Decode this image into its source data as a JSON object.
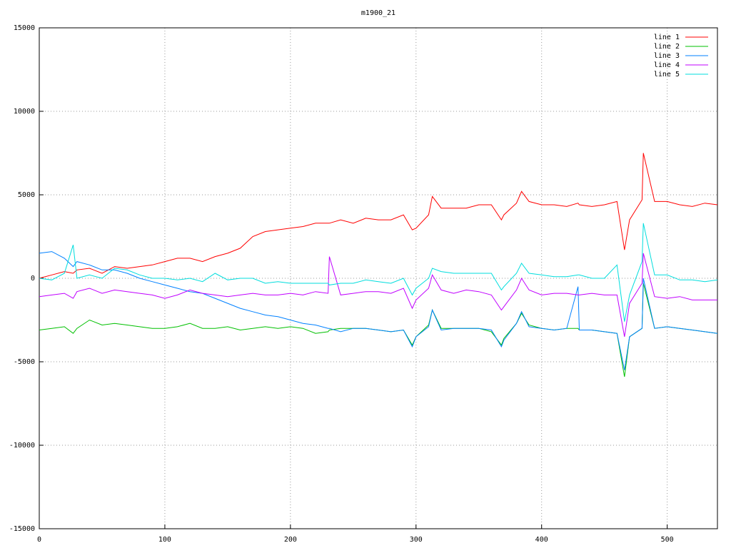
{
  "chart_data": {
    "type": "line",
    "title": "m1900_21",
    "x": [
      0,
      10,
      20,
      27,
      30,
      40,
      50,
      60,
      70,
      80,
      90,
      100,
      110,
      120,
      130,
      140,
      150,
      160,
      170,
      180,
      190,
      200,
      210,
      220,
      230,
      231,
      240,
      250,
      260,
      270,
      280,
      290,
      297,
      300,
      310,
      313,
      320,
      330,
      340,
      350,
      360,
      368,
      370,
      380,
      384,
      390,
      400,
      410,
      420,
      429,
      430,
      440,
      450,
      460,
      466,
      470,
      480,
      481,
      490,
      500,
      510,
      520,
      530,
      540
    ],
    "series": [
      {
        "name": "line 1",
        "color": "#ff0000",
        "values": [
          0,
          200,
          400,
          300,
          500,
          600,
          300,
          700,
          600,
          700,
          800,
          1000,
          1200,
          1200,
          1000,
          1300,
          1500,
          1800,
          2500,
          2800,
          2900,
          3000,
          3100,
          3300,
          3300,
          3300,
          3500,
          3300,
          3600,
          3500,
          3500,
          3800,
          2900,
          3000,
          3800,
          4900,
          4200,
          4200,
          4200,
          4400,
          4400,
          3500,
          3800,
          4500,
          5200,
          4600,
          4400,
          4400,
          4300,
          4500,
          4400,
          4300,
          4400,
          4600,
          1700,
          3500,
          4700,
          7500,
          4600,
          4600,
          4400,
          4300,
          4500,
          4400
        ]
      },
      {
        "name": "line 2",
        "color": "#00c000",
        "values": [
          -3100,
          -3000,
          -2900,
          -3300,
          -3000,
          -2500,
          -2800,
          -2700,
          -2800,
          -2900,
          -3000,
          -3000,
          -2900,
          -2700,
          -3000,
          -3000,
          -2900,
          -3100,
          -3000,
          -2900,
          -3000,
          -2900,
          -3000,
          -3300,
          -3200,
          -3100,
          -3000,
          -3000,
          -3000,
          -3100,
          -3200,
          -3100,
          -4000,
          -3500,
          -2800,
          -1900,
          -3000,
          -3000,
          -3000,
          -3000,
          -3200,
          -4000,
          -3600,
          -2700,
          -2100,
          -2800,
          -3000,
          -3100,
          -3000,
          -3000,
          -3100,
          -3100,
          -3200,
          -3300,
          -5900,
          -3500,
          -3000,
          -300,
          -3000,
          -2900,
          -3000,
          -3100,
          -3200,
          -3300
        ]
      },
      {
        "name": "line 3",
        "color": "#0080ff",
        "values": [
          1500,
          1600,
          1200,
          700,
          1000,
          800,
          500,
          500,
          300,
          0,
          -200,
          -400,
          -600,
          -800,
          -900,
          -1200,
          -1500,
          -1800,
          -2000,
          -2200,
          -2300,
          -2500,
          -2700,
          -2800,
          -3000,
          -3000,
          -3200,
          -3000,
          -3000,
          -3100,
          -3200,
          -3100,
          -4100,
          -3500,
          -2900,
          -1900,
          -3100,
          -3000,
          -3000,
          -3000,
          -3100,
          -4100,
          -3700,
          -2700,
          -2000,
          -2900,
          -3000,
          -3100,
          -3000,
          -500,
          -3100,
          -3100,
          -3200,
          -3300,
          -5500,
          -3500,
          -3000,
          0,
          -3000,
          -2900,
          -3000,
          -3100,
          -3200,
          -3300
        ]
      },
      {
        "name": "line 4",
        "color": "#c000ff",
        "values": [
          -1100,
          -1000,
          -900,
          -1200,
          -800,
          -600,
          -900,
          -700,
          -800,
          -900,
          -1000,
          -1200,
          -1000,
          -700,
          -900,
          -1000,
          -1100,
          -1000,
          -900,
          -1000,
          -1000,
          -900,
          -1000,
          -800,
          -900,
          1300,
          -1000,
          -900,
          -800,
          -800,
          -900,
          -600,
          -1800,
          -1300,
          -600,
          200,
          -700,
          -900,
          -700,
          -800,
          -1000,
          -1900,
          -1700,
          -700,
          0,
          -700,
          -1000,
          -900,
          -900,
          -1000,
          -1000,
          -900,
          -1000,
          -1000,
          -3500,
          -1500,
          -300,
          1500,
          -1100,
          -1200,
          -1100,
          -1300,
          -1300,
          -1300
        ]
      },
      {
        "name": "line 5",
        "color": "#00dddd",
        "values": [
          0,
          -100,
          300,
          2000,
          0,
          200,
          0,
          600,
          500,
          200,
          0,
          0,
          -100,
          0,
          -200,
          300,
          -100,
          0,
          0,
          -300,
          -200,
          -300,
          -300,
          -300,
          -300,
          -400,
          -300,
          -300,
          -100,
          -200,
          -300,
          0,
          -1000,
          -600,
          0,
          600,
          400,
          300,
          300,
          300,
          300,
          -700,
          -500,
          300,
          900,
          300,
          200,
          100,
          100,
          200,
          200,
          0,
          0,
          800,
          -2600,
          -1000,
          1000,
          3300,
          200,
          200,
          -100,
          -100,
          -200,
          -100
        ]
      }
    ],
    "xlim": [
      0,
      540
    ],
    "ylim": [
      -15000,
      15000
    ],
    "xticks": [
      0,
      100,
      200,
      300,
      400,
      500
    ],
    "yticks": [
      -15000,
      -10000,
      -5000,
      0,
      5000,
      10000,
      15000
    ],
    "grid": true,
    "legend": "top-right"
  }
}
